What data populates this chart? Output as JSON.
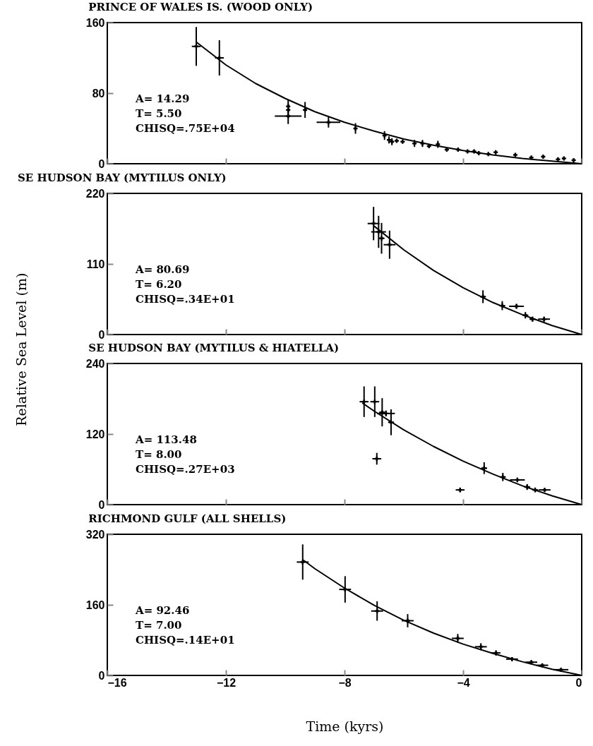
{
  "chart_data": [
    {
      "type": "scatter",
      "title": "PRINCE OF WALES IS. (WOOD ONLY)",
      "xlim": [
        -16,
        0
      ],
      "xticks": [
        -16,
        -12,
        -8,
        -4,
        0
      ],
      "ylim": [
        0,
        160
      ],
      "yticks": [
        0,
        80,
        160
      ],
      "tick_labels": "y",
      "annotations": [
        "A=  14.29",
        "T= 5.50",
        "CHISQ=.75E+04"
      ],
      "series": [
        {
          "type": "line",
          "color": "#000000",
          "marker": "none",
          "x": [
            -13,
            -12,
            -11,
            -10,
            -9,
            -8,
            -7,
            -6,
            -5,
            -4,
            -3,
            -2,
            -1,
            0
          ],
          "values": [
            138,
            112,
            91,
            74,
            59,
            47,
            37,
            28,
            21,
            15,
            10,
            6,
            3,
            0
          ]
        },
        {
          "type": "scatter",
          "color": "#000000",
          "marker": "cross",
          "x": [
            -13.0,
            -12.22,
            -9.9,
            -9.9,
            -9.9,
            -9.33,
            -8.54,
            -7.63,
            -6.65,
            -6.5,
            -6.4,
            -6.24,
            -6.04,
            -5.64,
            -5.37,
            -5.15,
            -4.85,
            -4.55,
            -4.17,
            -3.85,
            -3.63,
            -3.47,
            -3.15,
            -2.9,
            -2.24,
            -1.7,
            -1.3,
            -0.8,
            -0.6,
            -0.27
          ],
          "values": [
            133,
            120,
            65,
            61,
            54,
            61,
            47,
            40,
            32,
            27,
            25,
            26,
            25,
            23,
            23,
            20,
            22,
            16,
            16,
            14,
            14,
            12,
            11,
            13,
            10,
            7,
            8,
            5,
            6,
            4
          ],
          "errors": [
            22,
            20,
            7,
            7,
            9,
            9,
            6,
            6,
            5,
            4,
            4,
            null,
            null,
            4,
            4,
            null,
            4,
            null,
            null,
            null,
            null,
            null,
            null,
            null,
            null,
            null,
            null,
            null,
            null,
            null
          ],
          "xerrors": [
            0.15,
            0.15,
            null,
            null,
            0.45,
            null,
            0.4,
            null,
            null,
            null,
            null,
            null,
            null,
            null,
            null,
            null,
            null,
            null,
            null,
            null,
            null,
            null,
            null,
            null,
            null,
            null,
            null,
            null,
            null,
            null
          ]
        }
      ]
    },
    {
      "type": "scatter",
      "title": "SE HUDSON BAY (MYTILUS ONLY)",
      "ylabel": "Relative Sea Level (m)",
      "xlim": [
        -16,
        0
      ],
      "xticks": [
        -16,
        -12,
        -8,
        -4,
        0
      ],
      "ylim": [
        0,
        220
      ],
      "yticks": [
        0,
        110,
        220
      ],
      "tick_labels": "y",
      "annotations": [
        "A=   80.69",
        "T= 6.20",
        "CHISQ=.34E+01"
      ],
      "series": [
        {
          "type": "line",
          "color": "#000000",
          "marker": "none",
          "x": [
            -7,
            -6,
            -5,
            -4,
            -3,
            -2,
            -1,
            0
          ],
          "values": [
            169,
            132,
            100,
            73,
            50,
            31,
            14,
            0
          ]
        },
        {
          "type": "scatter",
          "color": "#000000",
          "marker": "cross",
          "x": [
            -7.02,
            -6.85,
            -6.75,
            -6.48,
            -3.33,
            -2.68,
            -2.2,
            -1.9,
            -1.66,
            -1.27
          ],
          "values": [
            173,
            160,
            150,
            140,
            59,
            45,
            44,
            30,
            24,
            24
          ],
          "errors": [
            26,
            25,
            24,
            22,
            10,
            7,
            4,
            5,
            4,
            4
          ],
          "xerrors": [
            0.2,
            0.25,
            0.1,
            0.2,
            0.1,
            0.1,
            0.25,
            0.1,
            0.1,
            0.2
          ]
        }
      ]
    },
    {
      "type": "scatter",
      "title": "SE HUDSON BAY (MYTILUS & HIATELLA)",
      "xlim": [
        -16,
        0
      ],
      "xticks": [
        -16,
        -12,
        -8,
        -4,
        0
      ],
      "ylim": [
        0,
        240
      ],
      "yticks": [
        0,
        120,
        240
      ],
      "tick_labels": "y",
      "annotations": [
        "A= 113.48",
        "T= 8.00",
        "CHISQ=.27E+03"
      ],
      "series": [
        {
          "type": "line",
          "color": "#000000",
          "marker": "none",
          "x": [
            -7.4,
            -7,
            -6,
            -5,
            -4,
            -3,
            -2,
            -1,
            0
          ],
          "values": [
            173,
            159,
            127,
            99,
            74,
            52,
            32,
            15,
            0
          ]
        },
        {
          "type": "scatter",
          "color": "#000000",
          "marker": "cross",
          "x": [
            -7.34,
            -6.98,
            -6.73,
            -6.6,
            -6.43,
            -6.91,
            -4.1,
            -3.29,
            -2.66,
            -2.17,
            -1.84,
            -1.57,
            -1.25
          ],
          "values": [
            175,
            175,
            157,
            155,
            140,
            78,
            25,
            62,
            47,
            42,
            30,
            25,
            25
          ],
          "errors": [
            26,
            26,
            24,
            5,
            22,
            10,
            4,
            10,
            7,
            4,
            5,
            4,
            3
          ],
          "xerrors": [
            0.15,
            0.15,
            0.1,
            0.3,
            0.1,
            0.15,
            0.15,
            0.1,
            0.1,
            0.25,
            0.1,
            0.1,
            0.2
          ]
        }
      ]
    },
    {
      "type": "scatter",
      "title": "RICHMOND GULF (ALL SHELLS)",
      "xlabel": "Time (kyrs)",
      "xlim": [
        -16,
        0
      ],
      "xticks": [
        -16,
        -12,
        -8,
        -4,
        0
      ],
      "ylim": [
        0,
        320
      ],
      "yticks": [
        0,
        160,
        320
      ],
      "annotations": [
        "A=   92.46",
        "T= 7.00",
        "CHISQ=.14E+01"
      ],
      "series": [
        {
          "type": "line",
          "color": "#000000",
          "marker": "none",
          "x": [
            -9.4,
            -9,
            -8,
            -7,
            -6,
            -5,
            -4,
            -3,
            -2,
            -1,
            0
          ],
          "values": [
            262,
            242,
            198,
            159,
            125,
            96,
            71,
            50,
            31,
            14,
            0
          ]
        },
        {
          "type": "scatter",
          "color": "#000000",
          "marker": "cross",
          "x": [
            -9.41,
            -7.98,
            -6.9,
            -5.87,
            -4.18,
            -3.4,
            -2.89,
            -2.35,
            -1.7,
            -1.33,
            -0.7
          ],
          "values": [
            257,
            195,
            146,
            124,
            84,
            65,
            51,
            37,
            30,
            23,
            13
          ],
          "errors": [
            40,
            30,
            22,
            15,
            10,
            8,
            6,
            4,
            4,
            3,
            null
          ],
          "xerrors": [
            0.2,
            0.2,
            0.2,
            0.2,
            0.2,
            0.2,
            0.15,
            0.2,
            0.2,
            0.2,
            0.25
          ]
        }
      ]
    }
  ]
}
